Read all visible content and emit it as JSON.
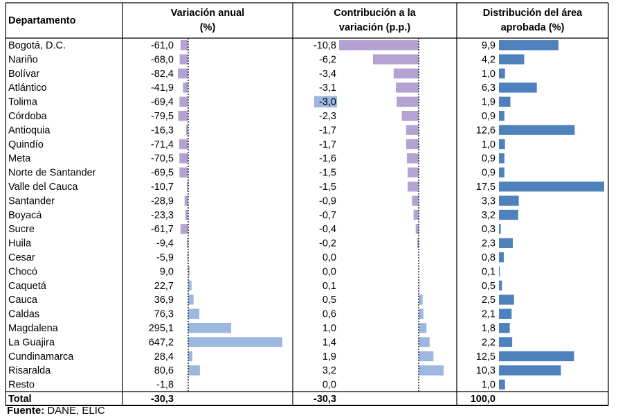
{
  "chart_data": {
    "type": "table",
    "headers": {
      "departamento": "Departamento",
      "variacion_line1": "Variación anual",
      "variacion_line2": "(%)",
      "contribucion_line1": "Contribución a la",
      "contribucion_line2": "variación (p.p.)",
      "distribucion_line1": "Distribución del área",
      "distribucion_line2": "aprobada (%)"
    },
    "rows": [
      {
        "name": "Bogotá, D.C.",
        "variacion": "-61,0",
        "contribucion": "-10,8",
        "distribucion": "9,9"
      },
      {
        "name": "Nariño",
        "variacion": "-68,0",
        "contribucion": "-6,2",
        "distribucion": "4,2"
      },
      {
        "name": "Bolívar",
        "variacion": "-82,4",
        "contribucion": "-3,4",
        "distribucion": "1,0"
      },
      {
        "name": "Atlántico",
        "variacion": "-41,9",
        "contribucion": "-3,1",
        "distribucion": "6,3"
      },
      {
        "name": "Tolima",
        "variacion": "-69,4",
        "contribucion": "-3,0",
        "distribucion": "1,9"
      },
      {
        "name": "Córdoba",
        "variacion": "-79,5",
        "contribucion": "-2,3",
        "distribucion": "0,9"
      },
      {
        "name": "Antioquia",
        "variacion": "-16,3",
        "contribucion": "-1,7",
        "distribucion": "12,6"
      },
      {
        "name": "Quindío",
        "variacion": "-71,4",
        "contribucion": "-1,7",
        "distribucion": "1,0"
      },
      {
        "name": "Meta",
        "variacion": "-70,5",
        "contribucion": "-1,6",
        "distribucion": "0,9"
      },
      {
        "name": "Norte de Santander",
        "variacion": "-69,5",
        "contribucion": "-1,5",
        "distribucion": "0,9"
      },
      {
        "name": "Valle del Cauca",
        "variacion": "-10,7",
        "contribucion": "-1,5",
        "distribucion": "17,5"
      },
      {
        "name": "Santander",
        "variacion": "-28,9",
        "contribucion": "-0,9",
        "distribucion": "3,3"
      },
      {
        "name": "Boyacá",
        "variacion": "-23,3",
        "contribucion": "-0,7",
        "distribucion": "3,2"
      },
      {
        "name": "Sucre",
        "variacion": "-61,7",
        "contribucion": "-0,4",
        "distribucion": "0,3"
      },
      {
        "name": "Huila",
        "variacion": "-9,4",
        "contribucion": "-0,2",
        "distribucion": "2,3"
      },
      {
        "name": "Cesar",
        "variacion": "-5,9",
        "contribucion": "0,0",
        "distribucion": "0,8"
      },
      {
        "name": "Chocó",
        "variacion": "9,0",
        "contribucion": "0,0",
        "distribucion": "0,1"
      },
      {
        "name": "Caquetá",
        "variacion": "22,7",
        "contribucion": "0,1",
        "distribucion": "0,5"
      },
      {
        "name": "Cauca",
        "variacion": "36,9",
        "contribucion": "0,5",
        "distribucion": "2,5"
      },
      {
        "name": "Caldas",
        "variacion": "76,3",
        "contribucion": "0,6",
        "distribucion": "2,1"
      },
      {
        "name": "Magdalena",
        "variacion": "295,1",
        "contribucion": "1,0",
        "distribucion": "1,8"
      },
      {
        "name": "La Guajira",
        "variacion": "647,2",
        "contribucion": "1,4",
        "distribucion": "2,2"
      },
      {
        "name": "Cundinamarca",
        "variacion": "28,4",
        "contribucion": "1,9",
        "distribucion": "12,5"
      },
      {
        "name": "Risaralda",
        "variacion": "80,6",
        "contribucion": "3,2",
        "distribucion": "10,3"
      },
      {
        "name": "Resto",
        "variacion": "-1,8",
        "contribucion": "0,0",
        "distribucion": "1,0"
      }
    ],
    "total": {
      "name": "Total",
      "variacion": "-30,3",
      "contribucion": "-30,3",
      "distribucion": "100,0"
    },
    "colors": {
      "negative": "#b3a2d2",
      "positive": "#9cb8e0",
      "distribution": "#4f81bd",
      "highlight": "#9cb8e0"
    },
    "highlighted_cell": {
      "row": "Tolima",
      "column": "contribucion"
    }
  },
  "source": {
    "label": "Fuente:",
    "text": " DANE, ELIC"
  }
}
